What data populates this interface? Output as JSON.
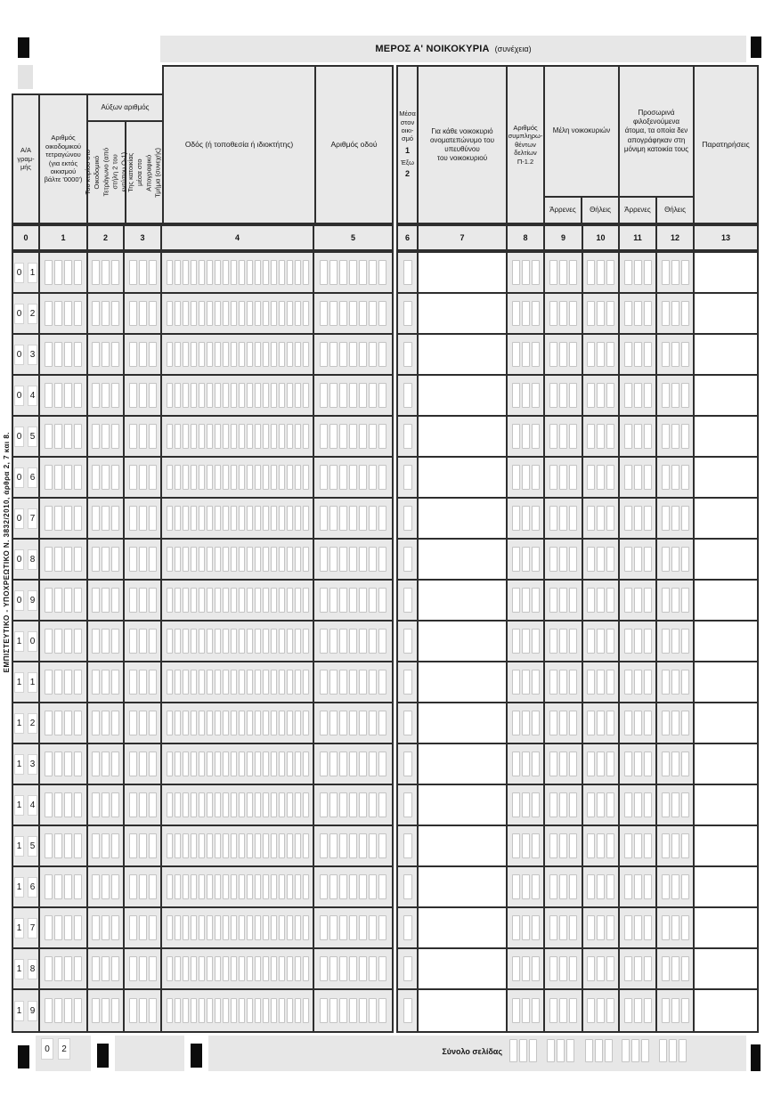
{
  "page": {
    "confidential_note": "ΕΜΠΙΣΤΕΥΤΙΚΟ - ΥΠΟΧΡΕΩΤΙΚΟ Ν. 3832/2010, άρθρα 2, 7 και 8.",
    "title": "ΜΕΡΟΣ Α' ΝΟΙΚΟΚΥΡΙΑ",
    "title_suffix": "(συνέχεια)",
    "page_number_digits": [
      "0",
      "2"
    ],
    "colors": {
      "band_gray": "#e7e7e7",
      "cell_gray": "#e9e9e9",
      "border_dark": "#2e2e2e",
      "mark_black": "#0c0c0c"
    }
  },
  "table": {
    "headers": {
      "col0": "Α/Α\nγραμ-\nμής",
      "col1": "Αριθμός\nοικοδομικού\nτετραγώνου\n(για εκτός\nοικισμού\nβάλτε '0000')",
      "auxon": "Αύξων αριθμός",
      "col2": "Του κτιρίου στο\nΟικοδομικό\nΤετράγωνο (από\nστήλη 2 του\nεντύπου Ο-1)",
      "col3": "Της κατοικίας\nμέσα στο\nΑπογραφικό\nΤμήμα (συνεχής)",
      "col4": "Οδός  (ή τοποθεσία ή ιδιοκτήτης)",
      "col5": "Αριθμός οδού",
      "col6_top": "Μέσα\nστον\nοικι-\nσμό",
      "col6_in_code": "1",
      "col6_out": "Έξω",
      "col6_out_code": "2",
      "col7": "Για κάθε νοικοκυριό\nονοματεπώνυμο του υπευθύνου\nτου νοικοκυριού",
      "col8": "Αριθμός\nσυμπληρω-\nθέντων\nδελτίων\nΠ-1.2",
      "col9_10": "Μέλη νοικοκυριών",
      "col11_12": "Προσωρινά\nφιλοξενούμενα\nάτομα, τα οποία δεν\nαπογράφηκαν στη\nμόνιμη κατοικία τους",
      "col13": "Παρατηρήσεις",
      "male": "Άρρενες",
      "female": "Θήλεις"
    },
    "column_numbers": [
      "0",
      "1",
      "2",
      "3",
      "4",
      "5",
      "6",
      "7",
      "8",
      "9",
      "10",
      "11",
      "12",
      "13"
    ],
    "row_labels": [
      "01",
      "02",
      "03",
      "04",
      "05",
      "06",
      "07",
      "08",
      "09",
      "10",
      "11",
      "12",
      "13",
      "14",
      "15",
      "16",
      "17",
      "18",
      "19"
    ],
    "box_counts": {
      "col1": 4,
      "col2": 3,
      "col3": 3,
      "col4": 18,
      "col5": 7,
      "col6": 1,
      "col7": 0,
      "col8": 3,
      "col9": 3,
      "col10": 3,
      "col11": 3,
      "col12": 3,
      "col13": 0
    }
  },
  "footer": {
    "total_label": "Σύνολο σελίδας",
    "box_groups": [
      3,
      3,
      3,
      3,
      3
    ]
  }
}
